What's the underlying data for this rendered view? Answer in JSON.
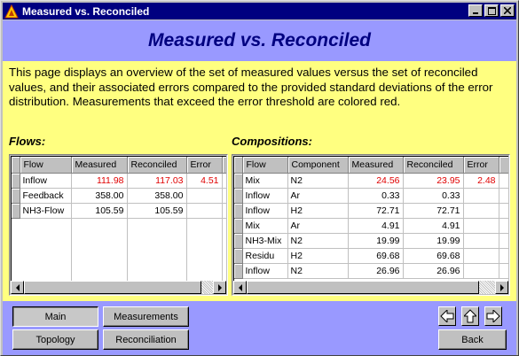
{
  "window": {
    "title": "Measured vs. Reconciled"
  },
  "banner": {
    "heading": "Measured vs. Reconciled"
  },
  "description": "This page displays an overview of the set of measured values versus the set of reconciled values, and their associated errors compared to the provided standard deviations of the error distribution. Measurements that exceed the error threshold are colored red.",
  "flows": {
    "label": "Flows:",
    "columns": [
      "Flow",
      "Measured",
      "Reconciled",
      "Error"
    ],
    "rows": [
      {
        "flow": "Inflow",
        "measured": "111.98",
        "reconciled": "117.03",
        "error": "4.51",
        "exceeds": true
      },
      {
        "flow": "Feedback",
        "measured": "358.00",
        "reconciled": "358.00",
        "error": "",
        "exceeds": false
      },
      {
        "flow": "NH3-Flow",
        "measured": "105.59",
        "reconciled": "105.59",
        "error": "",
        "exceeds": false
      }
    ]
  },
  "compositions": {
    "label": "Compositions:",
    "columns": [
      "Flow",
      "Component",
      "Measured",
      "Reconciled",
      "Error"
    ],
    "rows": [
      {
        "flow": "Mix",
        "component": "N2",
        "measured": "24.56",
        "reconciled": "23.95",
        "error": "2.48",
        "exceeds": true
      },
      {
        "flow": "Inflow",
        "component": "Ar",
        "measured": "0.33",
        "reconciled": "0.33",
        "error": "",
        "exceeds": false
      },
      {
        "flow": "Inflow",
        "component": "H2",
        "measured": "72.71",
        "reconciled": "72.71",
        "error": "",
        "exceeds": false
      },
      {
        "flow": "Mix",
        "component": "Ar",
        "measured": "4.91",
        "reconciled": "4.91",
        "error": "",
        "exceeds": false
      },
      {
        "flow": "NH3-Mix",
        "component": "N2",
        "measured": "19.99",
        "reconciled": "19.99",
        "error": "",
        "exceeds": false
      },
      {
        "flow": "Residu",
        "component": "H2",
        "measured": "69.68",
        "reconciled": "69.68",
        "error": "",
        "exceeds": false
      },
      {
        "flow": "Inflow",
        "component": "N2",
        "measured": "26.96",
        "reconciled": "26.96",
        "error": "",
        "exceeds": false
      }
    ]
  },
  "nav": {
    "main": "Main",
    "measurements": "Measurements",
    "topology": "Topology",
    "reconciliation": "Reconciliation",
    "back": "Back",
    "active": "main"
  },
  "icons": {
    "app": "app-logo-icon",
    "minimize": "minimize-icon",
    "maximize": "maximize-icon",
    "close": "close-icon",
    "prev": "arrow-left-icon",
    "up": "arrow-up-icon",
    "next": "arrow-right-icon"
  },
  "colors": {
    "banner": "#9999ff",
    "content": "#ffff80",
    "title": "#000080",
    "error": "#e00000"
  }
}
